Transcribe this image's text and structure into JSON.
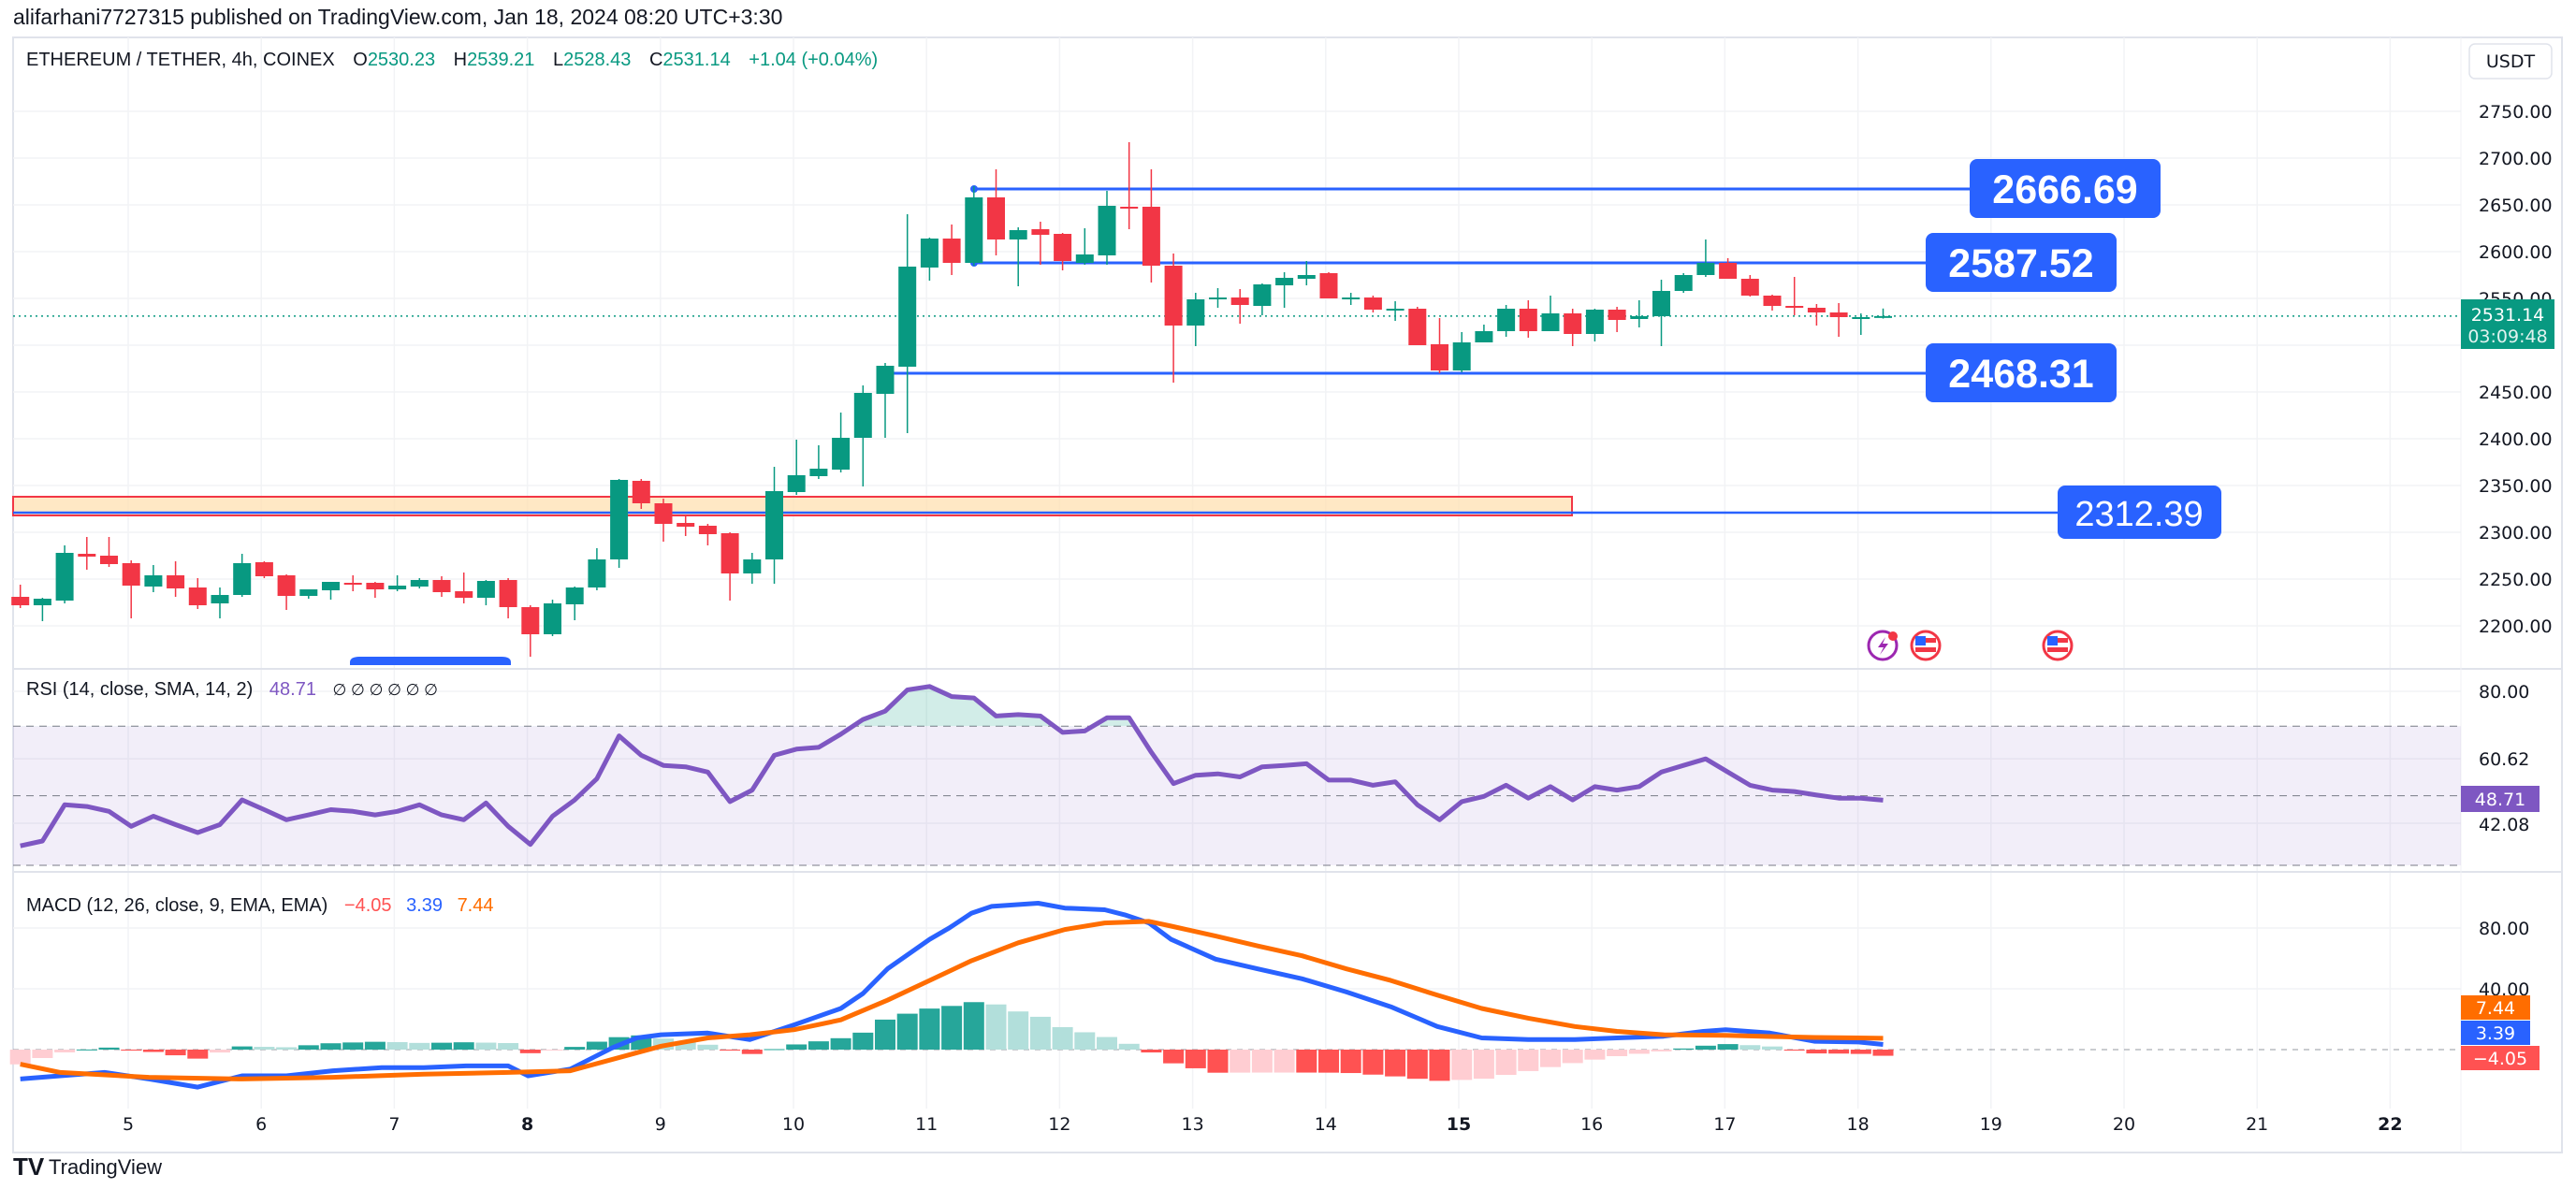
{
  "header": {
    "published": "alifarhani7727315 published on TradingView.com, Jan 18, 2024 08:20 UTC+3:30"
  },
  "legend": {
    "symbol": "ETHEREUM / TETHER, 4h, COINEX",
    "o_label": "O",
    "o": "2530.23",
    "h_label": "H",
    "h": "2539.21",
    "l_label": "L",
    "l": "2528.43",
    "c_label": "C",
    "c": "2531.14",
    "change": "+1.04 (+0.04%)"
  },
  "currency_button": "USDT",
  "price_axis": [
    "2750.00",
    "2700.00",
    "2650.00",
    "2600.00",
    "2550.00",
    "2450.00",
    "2400.00",
    "2350.00",
    "2300.00",
    "2250.00",
    "2200.00"
  ],
  "current_price": {
    "value": "2531.14",
    "countdown": "03:09:48"
  },
  "levels": [
    {
      "label": "2666.69",
      "price": 2666.69
    },
    {
      "label": "2587.52",
      "price": 2587.52
    },
    {
      "label": "2468.31",
      "price": 2468.31
    },
    {
      "label": "2312.39",
      "price": 2312.39
    }
  ],
  "zone": {
    "from": 2314,
    "to": 2334
  },
  "rsi": {
    "title": "RSI (14, close, SMA, 14, 2)",
    "value": "48.71",
    "na": "∅ ∅ ∅ ∅ ∅ ∅",
    "axis": [
      "80.00",
      "60.62",
      "42.08"
    ],
    "tag": "48.71"
  },
  "macd": {
    "title": "MACD (12, 26, close, 9, EMA, EMA)",
    "hist": "−4.05",
    "macd": "3.39",
    "signal": "7.44",
    "axis": [
      "80.00",
      "40.00"
    ],
    "tags": {
      "signal": "7.44",
      "macd": "3.39",
      "hist": "−4.05"
    }
  },
  "time_axis": [
    {
      "label": "5",
      "day": 5
    },
    {
      "label": "6",
      "day": 6
    },
    {
      "label": "7",
      "day": 7
    },
    {
      "label": "8",
      "day": 8,
      "bold": true
    },
    {
      "label": "9",
      "day": 9
    },
    {
      "label": "10",
      "day": 10
    },
    {
      "label": "11",
      "day": 11
    },
    {
      "label": "12",
      "day": 12
    },
    {
      "label": "13",
      "day": 13
    },
    {
      "label": "14",
      "day": 14
    },
    {
      "label": "15",
      "day": 15,
      "bold": true
    },
    {
      "label": "16",
      "day": 16
    },
    {
      "label": "17",
      "day": 17
    },
    {
      "label": "18",
      "day": 18
    },
    {
      "label": "19",
      "day": 19
    },
    {
      "label": "20",
      "day": 20
    },
    {
      "label": "21",
      "day": 21
    },
    {
      "label": "22",
      "day": 22,
      "bold": true
    }
  ],
  "footer": {
    "brand": "TradingView"
  },
  "colors": {
    "up": "#089981",
    "down": "#F23645",
    "level": "#2962FF",
    "rsi": "#7E57C2",
    "macd": "#2962FF",
    "signal": "#FF6D00"
  },
  "chart_data": {
    "type": "candlestick",
    "interval": "4h",
    "first_candle_day": 4.1667,
    "candles_ohlc": [
      [
        2231,
        2244,
        2219,
        2222
      ],
      [
        2222,
        2230,
        2205,
        2229
      ],
      [
        2227,
        2286,
        2224,
        2278
      ],
      [
        2277,
        2295,
        2260,
        2274
      ],
      [
        2275,
        2295,
        2263,
        2266
      ],
      [
        2267,
        2270,
        2208,
        2243
      ],
      [
        2242,
        2265,
        2236,
        2254
      ],
      [
        2254,
        2269,
        2231,
        2240
      ],
      [
        2241,
        2251,
        2218,
        2222
      ],
      [
        2224,
        2241,
        2208,
        2233
      ],
      [
        2233,
        2277,
        2231,
        2267
      ],
      [
        2268,
        2269,
        2251,
        2253
      ],
      [
        2254,
        2255,
        2217,
        2232
      ],
      [
        2232,
        2239,
        2229,
        2239
      ],
      [
        2238,
        2247,
        2228,
        2247
      ],
      [
        2246,
        2254,
        2237,
        2245
      ],
      [
        2246,
        2247,
        2230,
        2239
      ],
      [
        2239,
        2254,
        2237,
        2243
      ],
      [
        2242,
        2251,
        2240,
        2249
      ],
      [
        2249,
        2253,
        2231,
        2236
      ],
      [
        2237,
        2257,
        2224,
        2230
      ],
      [
        2230,
        2249,
        2222,
        2248
      ],
      [
        2249,
        2251,
        2208,
        2220
      ],
      [
        2220,
        2222,
        2167,
        2191
      ],
      [
        2191,
        2228,
        2189,
        2224
      ],
      [
        2223,
        2242,
        2206,
        2241
      ],
      [
        2241,
        2283,
        2238,
        2271
      ],
      [
        2271,
        2357,
        2262,
        2356
      ],
      [
        2355,
        2357,
        2325,
        2331
      ],
      [
        2331,
        2336,
        2290,
        2309
      ],
      [
        2310,
        2318,
        2296,
        2306
      ],
      [
        2307,
        2309,
        2286,
        2298
      ],
      [
        2299,
        2300,
        2227,
        2256
      ],
      [
        2256,
        2278,
        2245,
        2271
      ],
      [
        2271,
        2370,
        2245,
        2344
      ],
      [
        2343,
        2399,
        2340,
        2361
      ],
      [
        2360,
        2393,
        2357,
        2368
      ],
      [
        2367,
        2428,
        2364,
        2401
      ],
      [
        2401,
        2457,
        2349,
        2449
      ],
      [
        2448,
        2481,
        2401,
        2478
      ],
      [
        2477,
        2640,
        2406,
        2584
      ],
      [
        2583,
        2615,
        2569,
        2614
      ],
      [
        2614,
        2629,
        2575,
        2588
      ],
      [
        2588,
        2670,
        2585,
        2658
      ],
      [
        2658,
        2688,
        2596,
        2613
      ],
      [
        2613,
        2626,
        2563,
        2623
      ],
      [
        2624,
        2632,
        2586,
        2618
      ],
      [
        2619,
        2620,
        2580,
        2590
      ],
      [
        2588,
        2625,
        2586,
        2597
      ],
      [
        2596,
        2665,
        2586,
        2649
      ],
      [
        2648,
        2717,
        2624,
        2647
      ],
      [
        2648,
        2688,
        2567,
        2585
      ],
      [
        2585,
        2598,
        2460,
        2521
      ],
      [
        2521,
        2556,
        2499,
        2549
      ],
      [
        2549,
        2561,
        2540,
        2551
      ],
      [
        2551,
        2560,
        2523,
        2543
      ],
      [
        2542,
        2566,
        2532,
        2565
      ],
      [
        2564,
        2578,
        2540,
        2572
      ],
      [
        2571,
        2590,
        2564,
        2575
      ],
      [
        2577,
        2578,
        2550,
        2550
      ],
      [
        2550,
        2556,
        2543,
        2551
      ],
      [
        2551,
        2553,
        2535,
        2538
      ],
      [
        2537,
        2547,
        2526,
        2539
      ],
      [
        2539,
        2541,
        2500,
        2500
      ],
      [
        2501,
        2529,
        2470,
        2473
      ],
      [
        2473,
        2514,
        2471,
        2503
      ],
      [
        2503,
        2522,
        2503,
        2515
      ],
      [
        2515,
        2543,
        2509,
        2539
      ],
      [
        2539,
        2548,
        2508,
        2515
      ],
      [
        2515,
        2553,
        2515,
        2534
      ],
      [
        2534,
        2539,
        2499,
        2512
      ],
      [
        2512,
        2539,
        2504,
        2538
      ],
      [
        2538,
        2541,
        2514,
        2527
      ],
      [
        2528,
        2548,
        2519,
        2531
      ],
      [
        2531,
        2570,
        2499,
        2558
      ],
      [
        2558,
        2577,
        2556,
        2575
      ],
      [
        2575,
        2613,
        2573,
        2588
      ],
      [
        2588,
        2593,
        2571,
        2571
      ],
      [
        2571,
        2575,
        2552,
        2553
      ],
      [
        2553,
        2554,
        2537,
        2542
      ],
      [
        2542,
        2573,
        2532,
        2540
      ],
      [
        2540,
        2544,
        2521,
        2535
      ],
      [
        2535,
        2545,
        2509,
        2530
      ],
      [
        2530,
        2534,
        2511,
        2530
      ],
      [
        2530.23,
        2539.21,
        2528.43,
        2531.14
      ]
    ],
    "rsi_values": [
      35.6,
      37.0,
      47.4,
      46.9,
      45.5,
      41.2,
      44.1,
      41.7,
      39.4,
      41.7,
      48.8,
      46.0,
      43.1,
      44.5,
      46.0,
      45.5,
      44.5,
      45.5,
      47.4,
      44.5,
      43.1,
      47.9,
      41.2,
      36.0,
      44.1,
      48.8,
      54.9,
      67.2,
      61.6,
      58.7,
      58.3,
      56.8,
      48.3,
      51.6,
      61.6,
      63.4,
      63.9,
      67.7,
      71.9,
      74.3,
      80.4,
      81.4,
      78.5,
      78.1,
      72.9,
      73.3,
      72.9,
      68.2,
      68.6,
      72.4,
      72.4,
      62.5,
      53.5,
      55.9,
      56.3,
      55.4,
      58.3,
      58.7,
      59.2,
      54.5,
      54.5,
      53.0,
      54.0,
      47.4,
      43.1,
      48.3,
      49.8,
      53.0,
      49.3,
      52.6,
      48.8,
      52.6,
      51.6,
      52.6,
      56.8,
      58.7,
      60.6,
      56.8,
      53.0,
      51.6,
      51.2,
      50.2,
      49.3,
      49.3,
      48.71
    ],
    "rsi_bands": [
      70,
      50,
      30
    ],
    "macd_points": [
      [
        0,
        -19.3
      ],
      [
        1.8,
        -17.2
      ],
      [
        3.8,
        -15.0
      ],
      [
        5.8,
        -19.3
      ],
      [
        8,
        -24.7
      ],
      [
        10,
        -17.2
      ],
      [
        12,
        -17.2
      ],
      [
        14.1,
        -13.9
      ],
      [
        16.3,
        -11.8
      ],
      [
        18.2,
        -11.8
      ],
      [
        20.1,
        -10.7
      ],
      [
        22,
        -10.7
      ],
      [
        22.9,
        -17.2
      ],
      [
        24.8,
        -12.8
      ],
      [
        26.7,
        1.2
      ],
      [
        27.8,
        7.7
      ],
      [
        28.9,
        9.8
      ],
      [
        31,
        10.9
      ],
      [
        32.9,
        6.6
      ],
      [
        34.9,
        16.3
      ],
      [
        37,
        27.1
      ],
      [
        38,
        36.9
      ],
      [
        39.1,
        53.1
      ],
      [
        41,
        72.5
      ],
      [
        41.9,
        80.1
      ],
      [
        42.9,
        89.8
      ],
      [
        43.8,
        94.2
      ],
      [
        45.9,
        96.3
      ],
      [
        47.1,
        93.1
      ],
      [
        48.9,
        92.0
      ],
      [
        49.8,
        88.7
      ],
      [
        50.9,
        83.3
      ],
      [
        51.9,
        72.5
      ],
      [
        53.9,
        59.5
      ],
      [
        55.8,
        53.1
      ],
      [
        57.8,
        46.6
      ],
      [
        59.8,
        37.9
      ],
      [
        61.8,
        28.2
      ],
      [
        63.9,
        15.2
      ],
      [
        65.9,
        7.7
      ],
      [
        68,
        6.6
      ],
      [
        70.1,
        6.6
      ],
      [
        72,
        7.7
      ],
      [
        74.1,
        8.8
      ],
      [
        75.9,
        12.0
      ],
      [
        76.9,
        13.1
      ],
      [
        78.9,
        10.9
      ],
      [
        80.9,
        5.5
      ],
      [
        82.9,
        5.0
      ],
      [
        84,
        3.39
      ]
    ],
    "signal_points": [
      [
        0,
        -9.6
      ],
      [
        1.8,
        -15
      ],
      [
        5.8,
        -18.2
      ],
      [
        10,
        -19.3
      ],
      [
        14.1,
        -18.2
      ],
      [
        18.2,
        -16.1
      ],
      [
        22,
        -15
      ],
      [
        24.8,
        -13.9
      ],
      [
        26.7,
        -6.4
      ],
      [
        28.9,
        2.3
      ],
      [
        31,
        7.7
      ],
      [
        32.9,
        9.8
      ],
      [
        34.9,
        13.1
      ],
      [
        37,
        19.6
      ],
      [
        39.1,
        32.5
      ],
      [
        41,
        45.5
      ],
      [
        42.9,
        58.5
      ],
      [
        45,
        70.3
      ],
      [
        47.1,
        79
      ],
      [
        48.9,
        83.3
      ],
      [
        50.9,
        84.4
      ],
      [
        51.9,
        81.2
      ],
      [
        53.9,
        74.7
      ],
      [
        55.8,
        68.2
      ],
      [
        57.8,
        61.7
      ],
      [
        59.8,
        53.1
      ],
      [
        61.8,
        45.5
      ],
      [
        63.9,
        35.8
      ],
      [
        65.9,
        27.1
      ],
      [
        68,
        20.7
      ],
      [
        70.1,
        15.2
      ],
      [
        72,
        12
      ],
      [
        74.1,
        9.8
      ],
      [
        76.9,
        9.4
      ],
      [
        78.9,
        8.6
      ],
      [
        80.9,
        8.0
      ],
      [
        82.9,
        7.7
      ],
      [
        84,
        7.44
      ]
    ],
    "price_range": [
      2160,
      2770
    ],
    "rsi_range": [
      25,
      85
    ],
    "macd_range": [
      -40,
      110
    ]
  }
}
